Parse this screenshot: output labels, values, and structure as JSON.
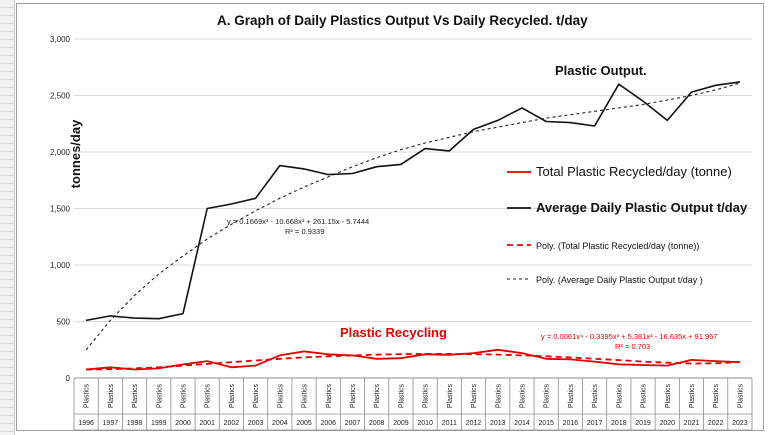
{
  "chart_data": {
    "type": "line",
    "title": "A.  Graph of Daily Plastics Output Vs Daily Recycled. t/day",
    "xlabel": "",
    "ylabel": "tonnes/day",
    "category_label": "Plastics",
    "categories": [
      "1996",
      "1997",
      "1998",
      "1999",
      "2000",
      "2001",
      "2002",
      "2003",
      "2004",
      "2005",
      "2006",
      "2007",
      "2008",
      "2009",
      "2010",
      "2011",
      "2012",
      "2013",
      "2014",
      "2015",
      "2016",
      "2017",
      "2018",
      "2019",
      "2020",
      "2021",
      "2022",
      "2023"
    ],
    "ylim": [
      0,
      3000
    ],
    "yticks": [
      0,
      500,
      1000,
      1500,
      2000,
      2500,
      3000
    ],
    "ytick_labels": [
      "0",
      "500",
      "1,000",
      "1,500",
      "2,000",
      "2,500",
      "3,000"
    ],
    "grid": true,
    "legend_position": "right",
    "series": [
      {
        "name": "Total Plastic Recycled/day (tonne)",
        "color": "#e00000",
        "style": "solid",
        "values": [
          75,
          95,
          75,
          85,
          120,
          150,
          95,
          110,
          200,
          235,
          210,
          200,
          170,
          175,
          210,
          205,
          220,
          250,
          220,
          170,
          165,
          145,
          120,
          115,
          110,
          160,
          150,
          140
        ]
      },
      {
        "name": "Average Daily Plastic Output  t/day",
        "color": "#111111",
        "style": "solid",
        "values": [
          510,
          550,
          530,
          525,
          570,
          1500,
          1540,
          1590,
          1880,
          1850,
          1800,
          1810,
          1870,
          1890,
          2030,
          2010,
          2200,
          2280,
          2390,
          2270,
          2260,
          2230,
          2600,
          2450,
          2280,
          2530,
          2590,
          2620
        ]
      },
      {
        "name": "Poly. (Total Plastic Recycled/day (tonne))",
        "color": "#e00000",
        "style": "dashed",
        "values": [
          75,
          78,
          85,
          95,
          110,
          125,
          140,
          155,
          170,
          182,
          192,
          200,
          207,
          211,
          213,
          213,
          211,
          207,
          200,
          192,
          182,
          170,
          158,
          145,
          135,
          128,
          130,
          142
        ]
      },
      {
        "name": "Poly. (Average Daily Plastic Output  t/day )",
        "color": "#222222",
        "style": "dashed",
        "values": [
          250,
          510,
          730,
          920,
          1080,
          1230,
          1360,
          1480,
          1590,
          1690,
          1780,
          1870,
          1950,
          2020,
          2080,
          2130,
          2180,
          2220,
          2260,
          2300,
          2330,
          2360,
          2390,
          2420,
          2460,
          2500,
          2550,
          2610
        ]
      }
    ],
    "annotations": {
      "output_label": "Plastic Output.",
      "recycling_label": "Plastic Recycling",
      "output_equation": "y = 0.1669x³ - 10.668x² + 261.15x - 5.7444",
      "output_r2": "R² = 0.9339",
      "recycling_equation": "y = 0.0061x⁴ - 0.3395x³ + 5.381x² - 16.635x + 91.967",
      "recycling_r2": "R² = 0.703"
    }
  }
}
